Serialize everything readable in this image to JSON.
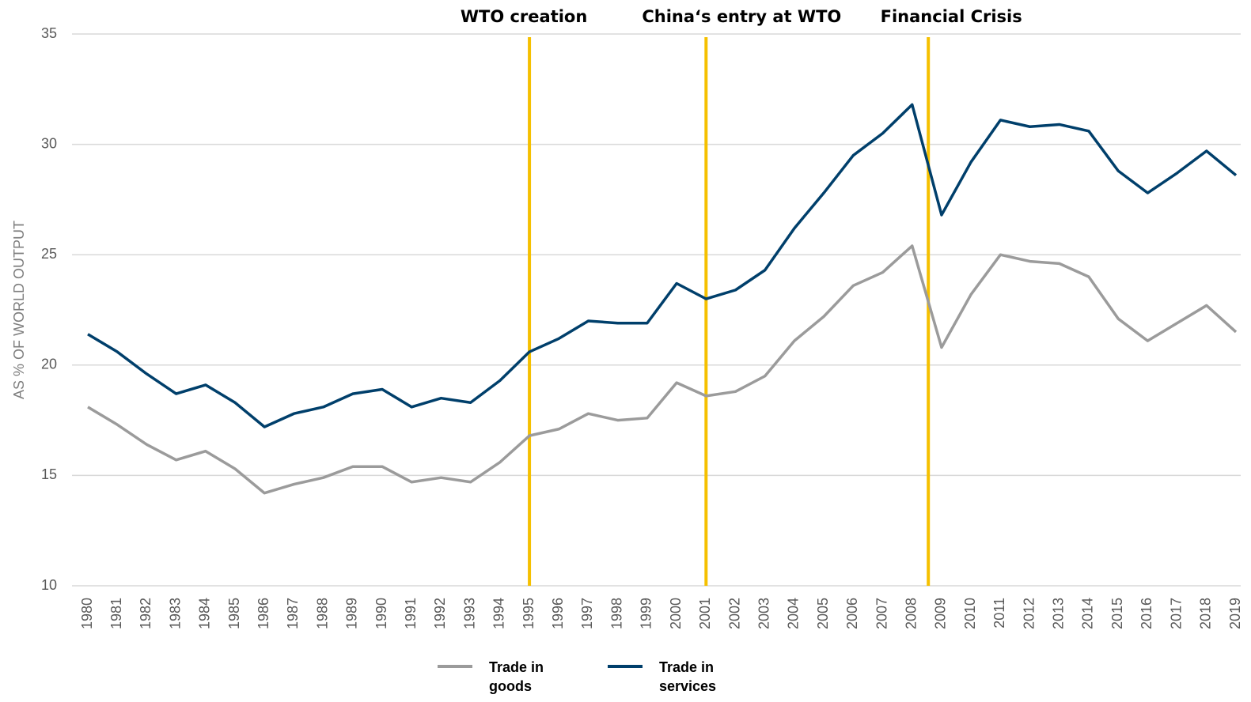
{
  "chart_data": {
    "type": "line",
    "y_axis_label": "AS % OF WORLD OUTPUT",
    "x": [
      1980,
      1981,
      1982,
      1983,
      1984,
      1985,
      1986,
      1987,
      1988,
      1989,
      1990,
      1991,
      1992,
      1993,
      1994,
      1995,
      1996,
      1997,
      1998,
      1999,
      2000,
      2001,
      2002,
      2003,
      2004,
      2005,
      2006,
      2007,
      2008,
      2009,
      2010,
      2011,
      2012,
      2013,
      2014,
      2015,
      2016,
      2017,
      2018,
      2019
    ],
    "xlim": [
      1980,
      2019
    ],
    "xticks": [
      1980,
      1981,
      1982,
      1983,
      1984,
      1985,
      1986,
      1987,
      1988,
      1989,
      1990,
      1991,
      1992,
      1993,
      1994,
      1995,
      1996,
      1997,
      1998,
      1999,
      2000,
      2001,
      2002,
      2003,
      2004,
      2005,
      2006,
      2007,
      2008,
      2009,
      2010,
      2011,
      2012,
      2013,
      2014,
      2015,
      2016,
      2017,
      2018,
      2019
    ],
    "ylim": [
      10,
      35
    ],
    "yticks": [
      10,
      15,
      20,
      25,
      30,
      35
    ],
    "grid": true,
    "legend": "bottom",
    "series": [
      {
        "name": "Trade in goods",
        "color": "#9b9b9b",
        "values": [
          18.1,
          17.3,
          16.4,
          15.7,
          16.1,
          15.3,
          14.2,
          14.6,
          14.9,
          15.4,
          15.4,
          14.7,
          14.9,
          14.7,
          15.6,
          16.8,
          17.1,
          17.8,
          17.5,
          17.6,
          19.2,
          18.6,
          18.8,
          19.5,
          21.1,
          22.2,
          23.6,
          24.2,
          25.4,
          20.8,
          23.2,
          25.0,
          24.7,
          24.6,
          24.0,
          22.1,
          21.1,
          21.9,
          22.7,
          21.5
        ]
      },
      {
        "name": "Trade in services",
        "color": "#003f6b",
        "values": [
          21.4,
          20.6,
          19.6,
          18.7,
          19.1,
          18.3,
          17.2,
          17.8,
          18.1,
          18.7,
          18.9,
          18.1,
          18.5,
          18.3,
          19.3,
          20.6,
          21.2,
          22.0,
          21.9,
          21.9,
          23.7,
          23.0,
          23.4,
          24.3,
          26.2,
          27.8,
          29.5,
          30.5,
          31.8,
          26.8,
          29.2,
          31.1,
          30.8,
          30.9,
          30.6,
          28.8,
          27.8,
          28.7,
          29.7,
          28.6
        ]
      }
    ],
    "annotations": [
      {
        "text": "WTO creation",
        "x": 1995,
        "color": "#f5c000"
      },
      {
        "text": "China‘s entry at WTO",
        "x": 2001,
        "color": "#f5c000"
      },
      {
        "text": "Financial Crisis",
        "x": 2008.55,
        "color": "#f5c000"
      }
    ]
  }
}
